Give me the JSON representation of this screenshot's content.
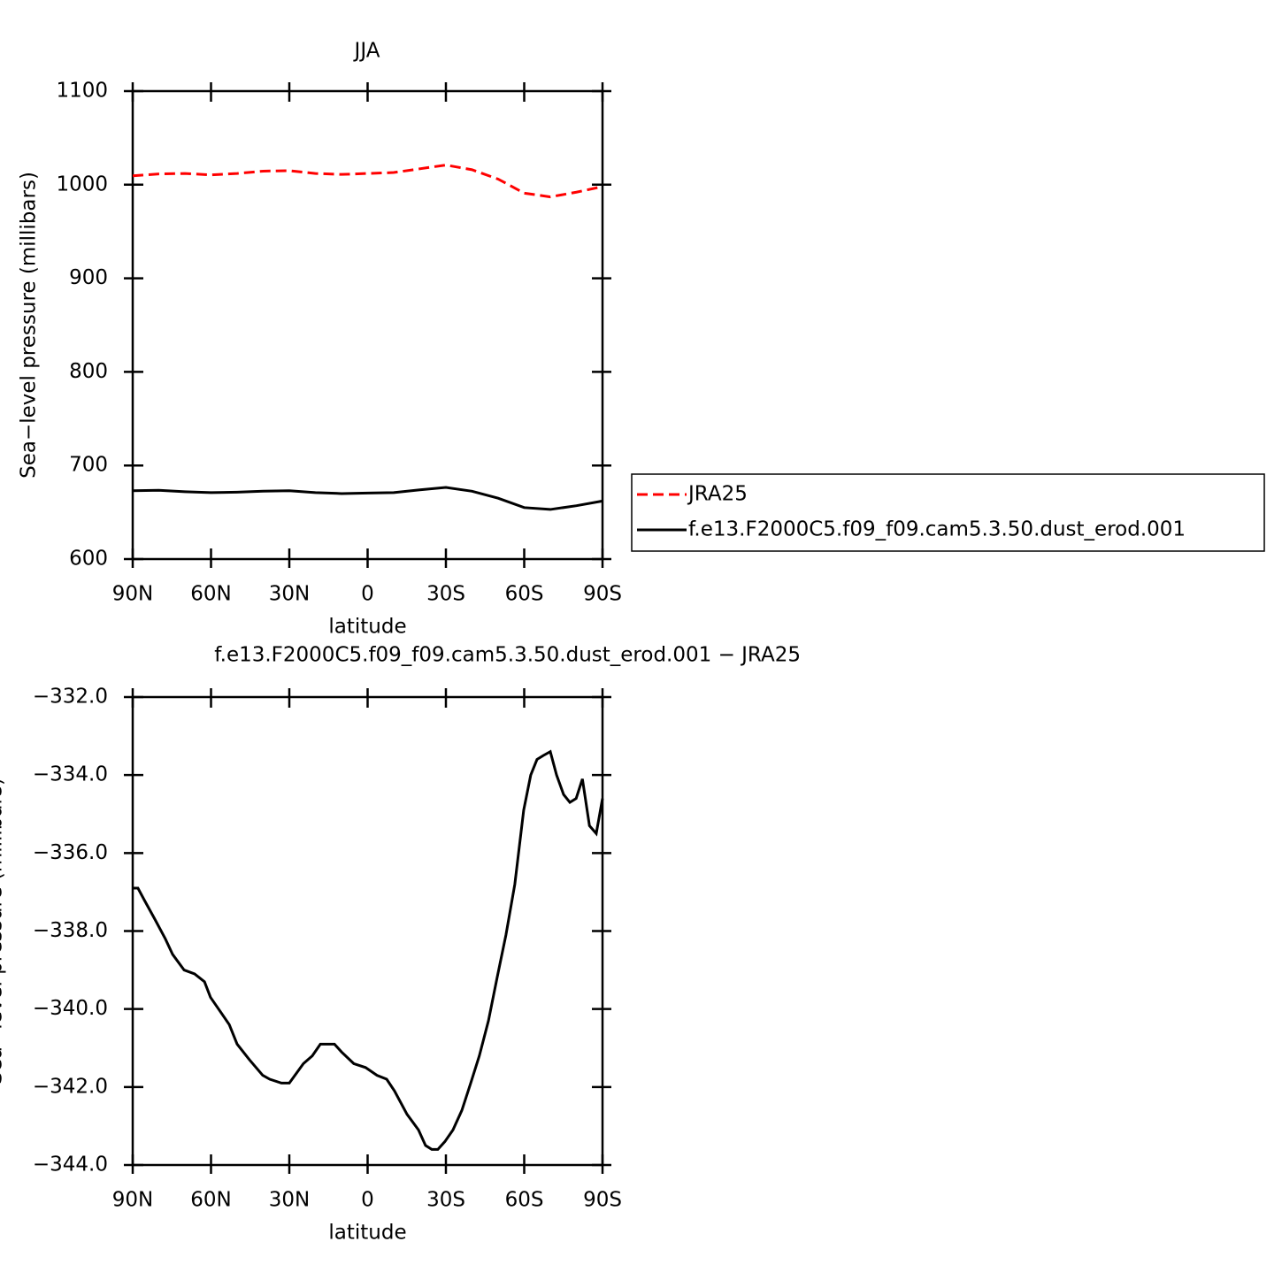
{
  "chart_data": [
    {
      "type": "line",
      "title": "JJA",
      "x_label": "latitude",
      "y_label": "Sea−level pressure (millibars)",
      "x": [
        90,
        80,
        70,
        60,
        50,
        40,
        30,
        20,
        10,
        0,
        -10,
        -20,
        -30,
        -40,
        -50,
        -60,
        -70,
        -80,
        -90
      ],
      "xlim": [
        90,
        -90
      ],
      "xticks": [
        {
          "value": 90,
          "label": "90N"
        },
        {
          "value": 60,
          "label": "60N"
        },
        {
          "value": 30,
          "label": "30N"
        },
        0,
        {
          "value": -30,
          "label": "30S"
        },
        {
          "value": -60,
          "label": "60S"
        },
        {
          "value": -90,
          "label": "90S"
        }
      ],
      "ylim": [
        600,
        1100
      ],
      "yticks": [
        600,
        700,
        800,
        900,
        1000,
        1100
      ],
      "series": [
        {
          "name": "JRA25",
          "color": "#ff0000",
          "dash": true,
          "values": [
            1009.5,
            1011.5,
            1012,
            1010.5,
            1012,
            1014.5,
            1015,
            1012,
            1011,
            1012,
            1013,
            1017,
            1021,
            1016,
            1006,
            991,
            987,
            992,
            998
          ]
        },
        {
          "name": "f.e13.F2000C5.f09_f09.cam5.3.50.dust_erod.001",
          "color": "#000000",
          "dash": false,
          "values": [
            673,
            673.5,
            672,
            671,
            671.5,
            672.5,
            673,
            671,
            670,
            670.5,
            671,
            674,
            676.5,
            672.5,
            665,
            655,
            653,
            657,
            662
          ]
        }
      ]
    },
    {
      "type": "line",
      "title": "f.e13.F2000C5.f09_f09.cam5.3.50.dust_erod.001 − JRA25",
      "x_label": "latitude",
      "y_label": "Sea−level pressure (millibars)",
      "x": [
        90,
        88,
        85.6,
        81.5,
        77.5,
        74.7,
        70.3,
        66.3,
        62.5,
        60.2,
        57.1,
        53,
        50,
        45.3,
        40.2,
        37.5,
        33,
        30,
        24.6,
        21.2,
        18.1,
        15.4,
        12.7,
        10,
        5.3,
        0.8,
        -3.6,
        -7.3,
        -10.3,
        -15.1,
        -19.5,
        -22.2,
        -24.6,
        -26.9,
        -29.6,
        -32.7,
        -36.1,
        -39.5,
        -42.8,
        -46.3,
        -49.6,
        -53,
        -56.4,
        -59.8,
        -62.5,
        -64.9,
        -67.3,
        -70,
        -72.4,
        -75.1,
        -77.5,
        -79.9,
        -82.3,
        -85,
        -87.6,
        -90
      ],
      "xlim": [
        90,
        -90
      ],
      "xticks": [
        {
          "value": 90,
          "label": "90N"
        },
        {
          "value": 60,
          "label": "60N"
        },
        {
          "value": 30,
          "label": "30N"
        },
        0,
        {
          "value": -30,
          "label": "30S"
        },
        {
          "value": -60,
          "label": "60S"
        },
        {
          "value": -90,
          "label": "90S"
        }
      ],
      "ylim": [
        -344,
        -332
      ],
      "yticks": [
        {
          "value": -344,
          "label": "−344.0"
        },
        {
          "value": -342,
          "label": "−342.0"
        },
        {
          "value": -340,
          "label": "−340.0"
        },
        {
          "value": -338,
          "label": "−338.0"
        },
        {
          "value": -336,
          "label": "−336.0"
        },
        {
          "value": -334,
          "label": "−334.0"
        },
        {
          "value": -332,
          "label": "−332.0"
        }
      ],
      "color": "#000000",
      "values": [
        -336.9,
        -336.9,
        -337.2,
        -337.7,
        -338.2,
        -338.6,
        -339.0,
        -339.1,
        -339.3,
        -339.7,
        -340.0,
        -340.4,
        -340.9,
        -341.3,
        -341.7,
        -341.8,
        -341.9,
        -341.9,
        -341.4,
        -341.2,
        -340.9,
        -340.9,
        -340.9,
        -341.1,
        -341.4,
        -341.5,
        -341.7,
        -341.8,
        -342.1,
        -342.7,
        -343.1,
        -343.5,
        -343.6,
        -343.6,
        -343.4,
        -343.1,
        -342.6,
        -341.9,
        -341.2,
        -340.3,
        -339.2,
        -338.1,
        -336.8,
        -334.9,
        -334.0,
        -333.6,
        -333.5,
        -333.4,
        -334.0,
        -334.5,
        -334.7,
        -334.6,
        -334.1,
        -335.3,
        -335.5,
        -334.6
      ]
    }
  ]
}
